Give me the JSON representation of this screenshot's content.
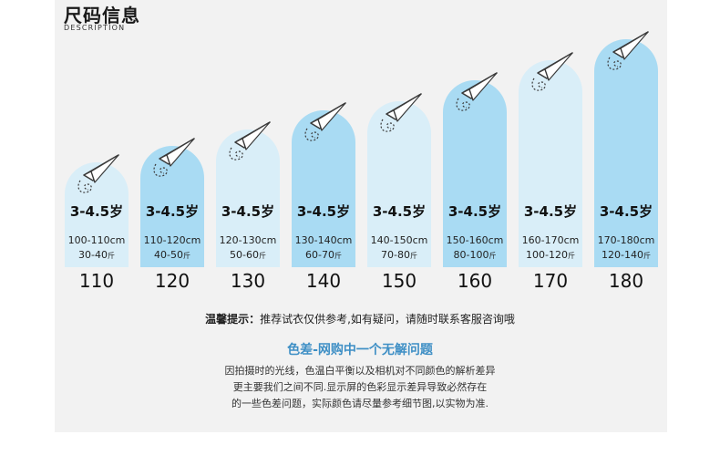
{
  "header": {
    "title": "尺码信息",
    "subtitle": "DESCRIPTION"
  },
  "sizes": [
    {
      "size": "110",
      "age": "3-4.5岁",
      "height": "100-110cm",
      "weight": "30-40",
      "weight_unit": "斤",
      "tone": "light"
    },
    {
      "size": "120",
      "age": "3-4.5岁",
      "height": "110-120cm",
      "weight": "40-50",
      "weight_unit": "斤",
      "tone": "dark"
    },
    {
      "size": "130",
      "age": "3-4.5岁",
      "height": "120-130cm",
      "weight": "50-60",
      "weight_unit": "斤",
      "tone": "light"
    },
    {
      "size": "140",
      "age": "3-4.5岁",
      "height": "130-140cm",
      "weight": "60-70",
      "weight_unit": "斤",
      "tone": "dark"
    },
    {
      "size": "150",
      "age": "3-4.5岁",
      "height": "140-150cm",
      "weight": "70-80",
      "weight_unit": "斤",
      "tone": "light"
    },
    {
      "size": "160",
      "age": "3-4.5岁",
      "height": "150-160cm",
      "weight": "80-100",
      "weight_unit": "斤",
      "tone": "dark"
    },
    {
      "size": "170",
      "age": "3-4.5岁",
      "height": "160-170cm",
      "weight": "100-120",
      "weight_unit": "斤",
      "tone": "light"
    },
    {
      "size": "180",
      "age": "3-4.5岁",
      "height": "170-180cm",
      "weight": "120-140",
      "weight_unit": "斤",
      "tone": "dark"
    }
  ],
  "tip": {
    "label": "温馨提示：",
    "text": "推荐试衣仅供参考,如有疑问，请随时联系客服咨询哦"
  },
  "notice": {
    "title": "色差-网购中一个无解问题",
    "lines": [
      "因拍摄时的光线，色温白平衡以及相机对不同颜色的解析差异",
      "更主要我们之间不同.显示屏的色彩显示差异导致必然存在",
      "的一些色差问题，实际颜色请尽量参考细节图,以实物为准."
    ]
  },
  "colors": {
    "bar_light": "#d9eef8",
    "bar_dark": "#a9dbf3",
    "accent": "#3e8fc5",
    "plane": "#5aa9de"
  },
  "icons": {
    "plane": "paper-plane-icon"
  }
}
